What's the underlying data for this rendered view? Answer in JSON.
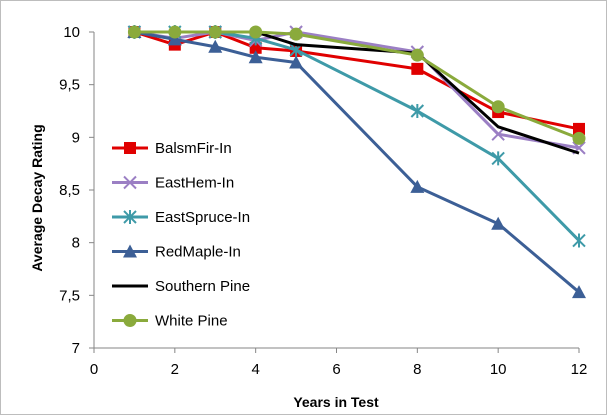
{
  "chart_data": {
    "type": "line",
    "title": "",
    "xlabel": "Years in Test",
    "ylabel": "Average Decay Rating",
    "xlim": [
      0,
      12
    ],
    "ylim": [
      7,
      10
    ],
    "xticks": [
      0,
      2,
      4,
      6,
      8,
      10,
      12
    ],
    "yticks": [
      7,
      7.5,
      8,
      8.5,
      9,
      9.5,
      10
    ],
    "ytick_labels": [
      "7",
      "7,5",
      "8",
      "8,5",
      "9",
      "9,5",
      "10"
    ],
    "grid": false,
    "legend_position": "left",
    "x": [
      1,
      2,
      3,
      4,
      5,
      8,
      10,
      12
    ],
    "series": [
      {
        "name": "BalsmFir-In",
        "color": "#e00000",
        "marker": "square",
        "values": [
          10,
          9.88,
          10,
          9.85,
          9.82,
          9.65,
          9.24,
          9.08
        ]
      },
      {
        "name": "EastHem-In",
        "color": "#9b7fc4",
        "marker": "x",
        "values": [
          10,
          9.94,
          10,
          9.92,
          10,
          9.81,
          9.03,
          8.9
        ]
      },
      {
        "name": "EastSpruce-In",
        "color": "#3e9aa8",
        "marker": "asterisk",
        "values": [
          10,
          10,
          10,
          9.94,
          9.83,
          9.25,
          8.8,
          8.02
        ]
      },
      {
        "name": "RedMaple-In",
        "color": "#3c5f96",
        "marker": "triangle",
        "values": [
          10,
          9.93,
          9.86,
          9.76,
          9.71,
          8.53,
          8.18,
          7.53
        ]
      },
      {
        "name": "Southern Pine",
        "color": "#000000",
        "marker": "none",
        "values": [
          10,
          10,
          10,
          10,
          9.88,
          9.8,
          9.1,
          8.85
        ]
      },
      {
        "name": "White Pine",
        "color": "#8aaa3c",
        "marker": "circle",
        "values": [
          10,
          10,
          10,
          10,
          9.98,
          9.78,
          9.29,
          8.99
        ]
      }
    ]
  }
}
